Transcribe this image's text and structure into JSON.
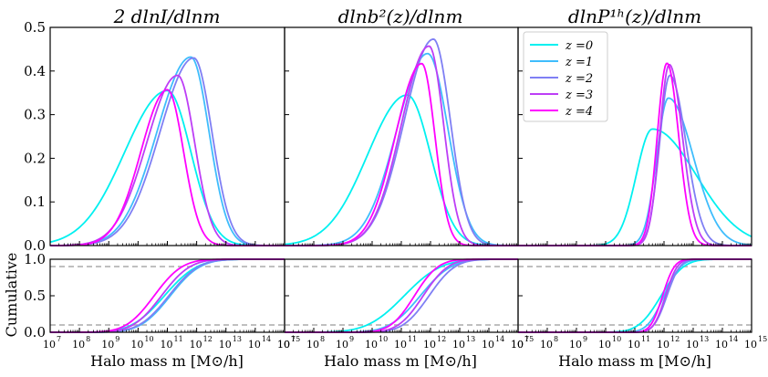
{
  "chart_data": {
    "type": "line",
    "panel_titles": [
      "2 dlnI/dlnm",
      "dlnb²(z)/dlnm",
      "dlnP¹ʰ(z)/dlnm"
    ],
    "ylabel_bottom": "Cumulative",
    "xlabel": "Halo mass m [M⊙/h]",
    "x_scale": "log10",
    "xlim_exp": [
      7,
      15
    ],
    "top_ylim": [
      0,
      0.5
    ],
    "top_yticks": [
      "0.0",
      "0.1",
      "0.2",
      "0.3",
      "0.4",
      "0.5"
    ],
    "bottom_ylim": [
      0,
      1
    ],
    "bottom_yticks": [
      "0.0",
      "0.5",
      "1.0"
    ],
    "reference_lines": [
      0.1,
      0.9
    ],
    "legend": {
      "location": "top-left of third panel",
      "entries": [
        "z =0",
        "z =1",
        "z =2",
        "z =3",
        "z =4"
      ]
    },
    "series": [
      {
        "name": "z =0",
        "color": "#00f0f0"
      },
      {
        "name": "z =1",
        "color": "#3fbdfc"
      },
      {
        "name": "z =2",
        "color": "#7f7ff4"
      },
      {
        "name": "z =3",
        "color": "#bd3ef6"
      },
      {
        "name": "z =4",
        "color": "#ff00ff"
      }
    ],
    "peaks": [
      {
        "panel": 1,
        "logm": [
          11.0,
          11.8,
          11.9,
          11.35,
          11.0
        ],
        "height": [
          0.355,
          0.432,
          0.43,
          0.39,
          0.357
        ],
        "sigL": [
          1.45,
          1.15,
          1.15,
          1.05,
          0.9
        ],
        "sigR": [
          0.8,
          0.62,
          0.62,
          0.58,
          0.55
        ],
        "cum_mid": [
          10.9,
          11.1,
          11.05,
          10.8,
          10.55
        ],
        "cum_w": [
          0.55,
          0.5,
          0.5,
          0.48,
          0.47
        ]
      },
      {
        "panel": 2,
        "logm": [
          11.2,
          11.9,
          12.1,
          11.95,
          11.7
        ],
        "height": [
          0.345,
          0.44,
          0.473,
          0.457,
          0.417
        ],
        "sigL": [
          1.35,
          1.05,
          1.0,
          0.95,
          0.9
        ],
        "sigR": [
          0.8,
          0.7,
          0.58,
          0.5,
          0.45
        ],
        "cum_mid": [
          11.1,
          11.65,
          11.95,
          11.75,
          11.45
        ],
        "cum_w": [
          0.62,
          0.52,
          0.44,
          0.42,
          0.4
        ]
      },
      {
        "panel": 3,
        "logm": [
          11.6,
          12.15,
          12.2,
          12.18,
          12.1
        ],
        "height": [
          0.267,
          0.338,
          0.39,
          0.415,
          0.418
        ],
        "sigL": [
          0.55,
          0.4,
          0.35,
          0.33,
          0.33
        ],
        "sigR": [
          1.5,
          0.85,
          0.55,
          0.45,
          0.4
        ],
        "cum_mid": [
          11.9,
          12.0,
          12.1,
          12.05,
          11.95
        ],
        "cum_w": [
          0.38,
          0.28,
          0.22,
          0.2,
          0.2
        ]
      }
    ]
  }
}
